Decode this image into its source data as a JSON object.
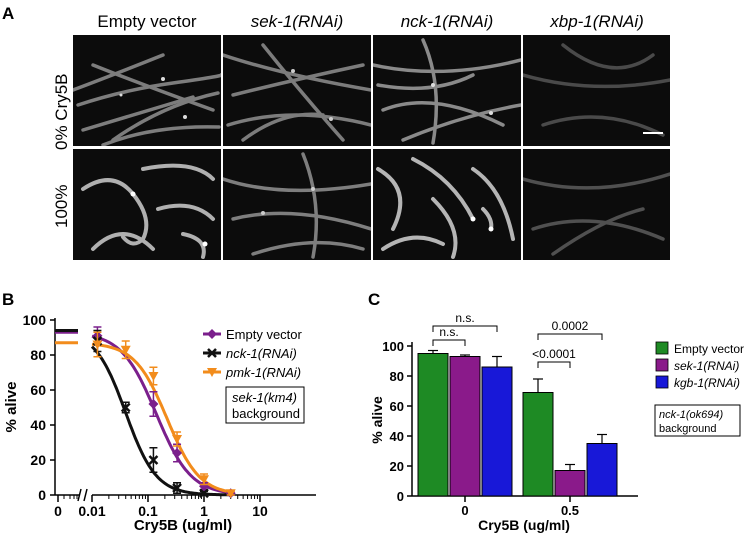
{
  "panel_a": {
    "letter": "A",
    "columns": [
      "Empty vector",
      "sek-1(RNAi)",
      "nck-1(RNAi)",
      "xbp-1(RNAi)"
    ],
    "column_italic": [
      false,
      true,
      true,
      true
    ],
    "rows": [
      "0% Cry5B",
      "100%"
    ]
  },
  "panel_b": {
    "letter": "B"
  },
  "panel_c": {
    "letter": "C"
  },
  "chart_data": [
    {
      "type": "line",
      "xlabel": "Cry5B (ug/ml)",
      "ylabel": "% alive",
      "xscale": "log",
      "xlim": [
        0.001,
        10
      ],
      "ylim": [
        0,
        100
      ],
      "xticks": [
        "0",
        "0.01",
        "0.1",
        "1",
        "10"
      ],
      "yticks": [
        "0",
        "20",
        "40",
        "60",
        "80",
        "100"
      ],
      "series": [
        {
          "name": "Empty vector",
          "color": "#7b1f8c",
          "marker": "diamond",
          "points": [
            {
              "x": 0.0125,
              "y": 91,
              "err": 5
            },
            {
              "x": 0.125,
              "y": 52,
              "err": 7
            },
            {
              "x": 0.33,
              "y": 24,
              "err": 5
            },
            {
              "x": 1.0,
              "y": 5,
              "err": 2
            },
            {
              "x": 3.0,
              "y": 1,
              "err": 1
            }
          ],
          "control": 93
        },
        {
          "name": "nck-1(RNAi)",
          "color": "#111111",
          "marker": "x",
          "points": [
            {
              "x": 0.0125,
              "y": 88,
              "err": 6
            },
            {
              "x": 0.04,
              "y": 50,
              "err": 3
            },
            {
              "x": 0.125,
              "y": 20,
              "err": 7
            },
            {
              "x": 0.33,
              "y": 4,
              "err": 3
            },
            {
              "x": 1.0,
              "y": 1,
              "err": 1
            }
          ],
          "control": 94
        },
        {
          "name": "pmk-1(RNAi)",
          "color": "#f28c1c",
          "marker": "triangle-down",
          "points": [
            {
              "x": 0.0125,
              "y": 86,
              "err": 7
            },
            {
              "x": 0.04,
              "y": 83,
              "err": 5
            },
            {
              "x": 0.125,
              "y": 68,
              "err": 5
            },
            {
              "x": 0.33,
              "y": 32,
              "err": 4
            },
            {
              "x": 1.0,
              "y": 9,
              "err": 3
            },
            {
              "x": 3.0,
              "y": 1,
              "err": 1
            }
          ],
          "control": 87
        }
      ],
      "annotation": [
        "sek-1(km4)",
        "background"
      ],
      "legend": "right"
    },
    {
      "type": "bar",
      "xlabel": "Cry5B (ug/ml)",
      "ylabel": "% alive",
      "ylim": [
        0,
        100
      ],
      "yticks": [
        "0",
        "20",
        "40",
        "60",
        "80",
        "100"
      ],
      "categories": [
        "0",
        "0.5"
      ],
      "series": [
        {
          "name": "Empty vector",
          "color": "#1e8a24",
          "values": [
            95,
            69
          ],
          "errors": [
            2,
            9
          ]
        },
        {
          "name": "sek-1(RNAi)",
          "color": "#8a1a8a",
          "values": [
            93,
            17
          ],
          "errors": [
            1,
            4
          ]
        },
        {
          "name": "kgb-1(RNAi)",
          "color": "#1818d8",
          "values": [
            86,
            35
          ],
          "errors": [
            7,
            6
          ]
        }
      ],
      "significance": [
        "n.s.",
        "n.s.",
        "<0.0001",
        "0.0002"
      ],
      "annotation": [
        "nck-1(ok694)",
        "background"
      ],
      "legend": "right"
    }
  ]
}
